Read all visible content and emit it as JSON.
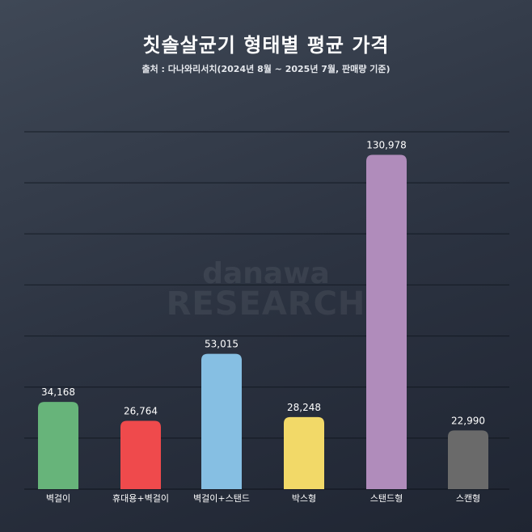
{
  "header": {
    "title": "칫솔살균기 형태별 평균 가격",
    "subtitle": "출처 : 다나와리서치(2024년 8월 ~ 2025년 7월, 판매량 기준)"
  },
  "watermark": {
    "logo": "danawa",
    "sub": "RESEARCH"
  },
  "chart_data": {
    "type": "bar",
    "title": "칫솔살균기 형태별 평균 가격",
    "subtitle": "출처 : 다나와리서치(2024년 8월 ~ 2025년 7월, 판매량 기준)",
    "categories": [
      "벽걸이",
      "휴대용+벽걸이",
      "벽걸이+스탠드",
      "박스형",
      "스탠드형",
      "스캔형"
    ],
    "values": [
      34168,
      26764,
      53015,
      28248,
      130978,
      22990
    ],
    "value_labels": [
      "34,168",
      "26,764",
      "53,015",
      "28,248",
      "130,978",
      "22,990"
    ],
    "colors": [
      "#67b47a",
      "#ef4a4c",
      "#86bfe3",
      "#f2d968",
      "#b08cbb",
      "#6a6a6a"
    ],
    "ylim": [
      0,
      140000
    ],
    "grid": true,
    "legend": "none",
    "xlabel": "",
    "ylabel": ""
  }
}
